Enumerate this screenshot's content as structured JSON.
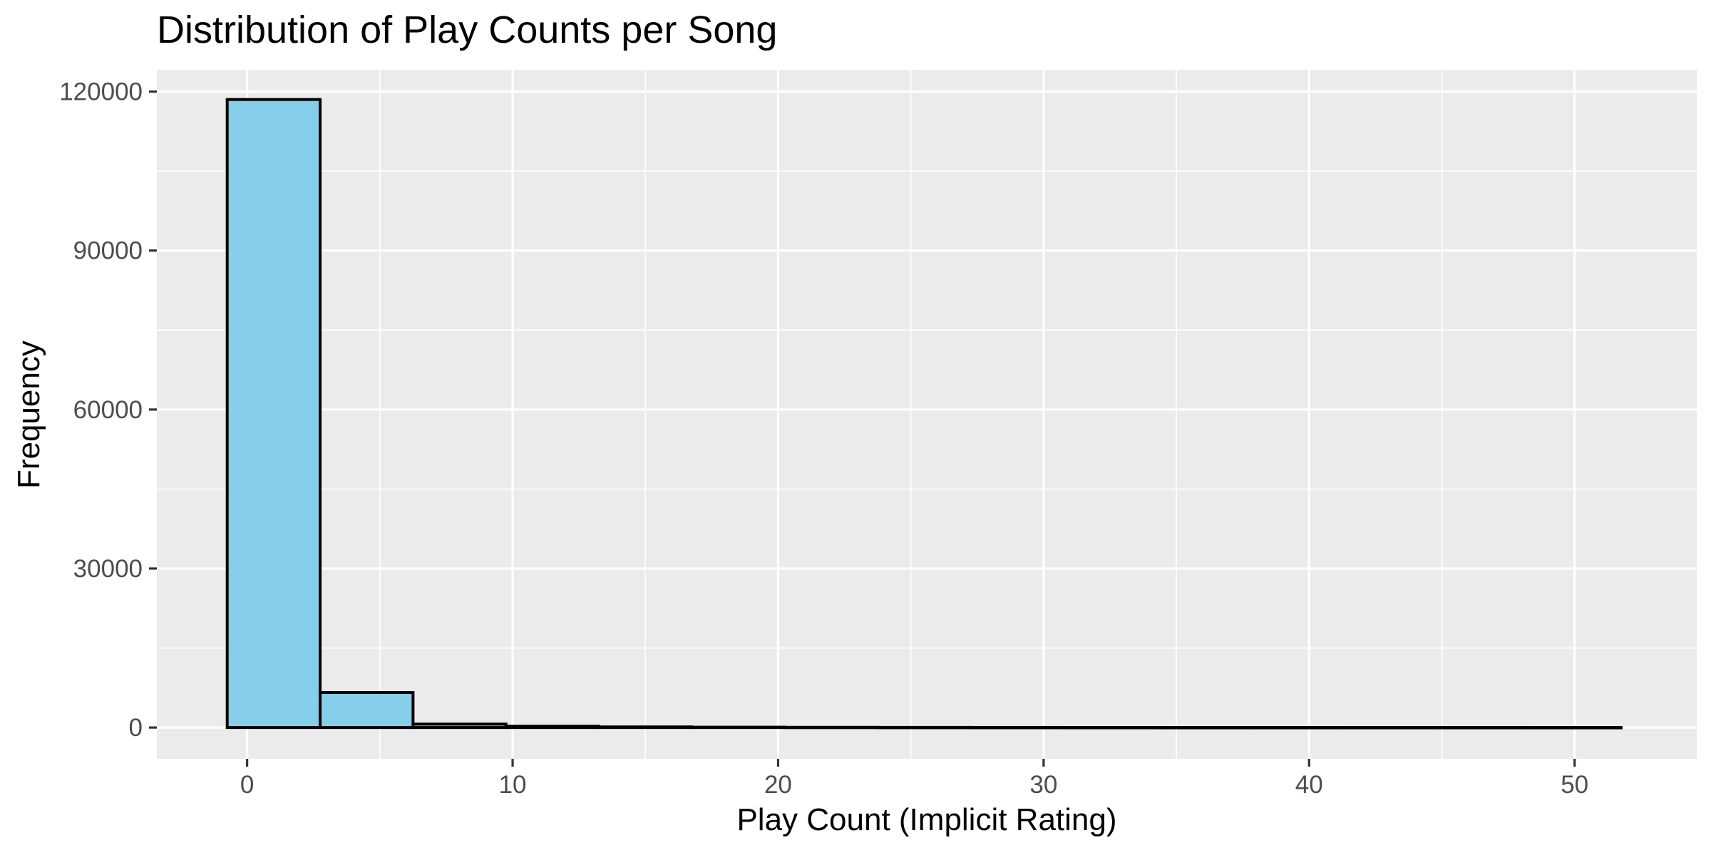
{
  "chart_data": {
    "type": "bar",
    "title": "Distribution of Play Counts per Song",
    "xlabel": "Play Count (Implicit Rating)",
    "ylabel": "Frequency",
    "xlim": [
      -3.4,
      54.6
    ],
    "ylim": [
      -5900,
      124100
    ],
    "x_ticks": [
      0,
      10,
      20,
      30,
      40,
      50
    ],
    "y_ticks": [
      0,
      30000,
      60000,
      90000,
      120000
    ],
    "x_tick_labels": [
      "0",
      "10",
      "20",
      "30",
      "40",
      "50"
    ],
    "y_tick_labels": [
      "0",
      "30000",
      "60000",
      "90000",
      "120000"
    ],
    "bin_edges": [
      -0.75,
      2.75,
      6.25,
      9.75,
      13.25,
      16.75,
      20.25,
      23.75,
      27.25,
      30.75,
      34.25,
      37.75,
      41.25,
      44.75,
      48.25,
      51.75
    ],
    "values": [
      118500,
      6600,
      650,
      250,
      120,
      70,
      45,
      30,
      20,
      15,
      10,
      8,
      6,
      5,
      4
    ],
    "grid": true,
    "colors": {
      "bar_fill": "#87CEEB",
      "bar_stroke": "#000000",
      "panel_background": "#EBEBEB",
      "gridline": "#FFFFFF"
    }
  }
}
